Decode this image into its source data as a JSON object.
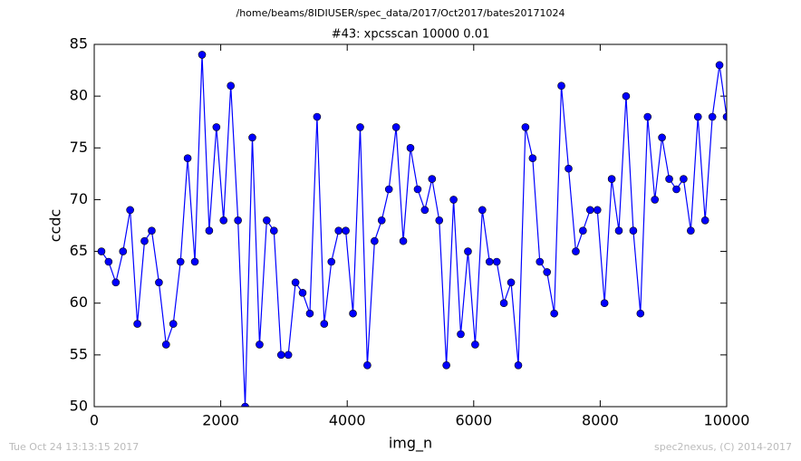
{
  "chart_data": {
    "type": "line",
    "suptitle": "/home/beams/8IDIUSER/spec_data/2017/Oct2017/bates20171024",
    "title": "#43: xpcsscan 10000 0.01",
    "xlabel": "img_n",
    "ylabel": "ccdc",
    "footer_left": "Tue Oct 24 13:13:15 2017",
    "footer_right": "spec2nexus, (C) 2014-2017",
    "x": [
      114,
      227,
      341,
      455,
      568,
      682,
      795,
      909,
      1023,
      1136,
      1250,
      1364,
      1477,
      1591,
      1705,
      1818,
      1932,
      2045,
      2159,
      2273,
      2386,
      2500,
      2614,
      2727,
      2841,
      2955,
      3068,
      3182,
      3295,
      3409,
      3523,
      3636,
      3750,
      3864,
      3977,
      4091,
      4205,
      4318,
      4432,
      4545,
      4659,
      4773,
      4886,
      5000,
      5114,
      5227,
      5341,
      5455,
      5568,
      5682,
      5795,
      5909,
      6023,
      6136,
      6250,
      6364,
      6477,
      6591,
      6705,
      6818,
      6932,
      7045,
      7159,
      7273,
      7386,
      7500,
      7614,
      7727,
      7841,
      7955,
      8068,
      8182,
      8295,
      8409,
      8523,
      8636,
      8750,
      8864,
      8977,
      9091,
      9205,
      9318,
      9432,
      9545,
      9659,
      9773,
      9886,
      10000
    ],
    "series": [
      {
        "name": "ccdc",
        "color": "#0000ff",
        "values": [
          65,
          64,
          62,
          65,
          69,
          58,
          66,
          67,
          62,
          56,
          58,
          64,
          74,
          64,
          84,
          67,
          77,
          68,
          81,
          68,
          50,
          76,
          56,
          68,
          67,
          55,
          55,
          62,
          61,
          59,
          78,
          58,
          64,
          67,
          67,
          59,
          77,
          54,
          66,
          68,
          71,
          77,
          66,
          75,
          71,
          69,
          72,
          68,
          54,
          70,
          57,
          65,
          56,
          69,
          64,
          64,
          60,
          62,
          54,
          77,
          74,
          64,
          63,
          59,
          81,
          73,
          65,
          67,
          69,
          69,
          60,
          72,
          67,
          80,
          67,
          59,
          78,
          70,
          76,
          72,
          71,
          72,
          67,
          78,
          68,
          78,
          83,
          78
        ]
      }
    ],
    "xlim": [
      0,
      10000
    ],
    "xticks": [
      0,
      2000,
      4000,
      6000,
      8000,
      10000
    ],
    "ylim": [
      50,
      85
    ],
    "yticks": [
      50,
      55,
      60,
      65,
      70,
      75,
      80,
      85
    ]
  }
}
